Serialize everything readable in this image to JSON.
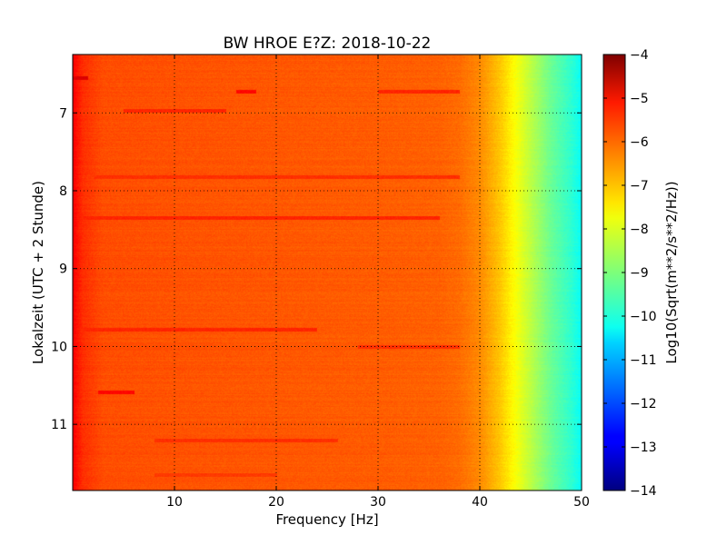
{
  "chart_data": {
    "type": "heatmap",
    "title": "BW HROE E?Z: 2018-10-22",
    "xlabel": "Frequency [Hz]",
    "ylabel": "Lokalzeit (UTC + 2 Stunde)",
    "xlim": [
      0,
      50
    ],
    "ylim": [
      6.25,
      11.85
    ],
    "y_inverted": true,
    "x_ticks": [
      10,
      20,
      30,
      40,
      50
    ],
    "x_tick_labels": [
      "10",
      "20",
      "30",
      "40",
      "50"
    ],
    "y_ticks": [
      7,
      8,
      9,
      10,
      11
    ],
    "y_tick_labels": [
      "7",
      "8",
      "9",
      "10",
      "11"
    ],
    "grid": true,
    "colormap": "jet",
    "colorbar": {
      "label": "Log10(Sqrt(m**2/s**2/Hz))",
      "range": [
        -14,
        -4
      ],
      "ticks": [
        -4,
        -5,
        -6,
        -7,
        -8,
        -9,
        -10,
        -11,
        -12,
        -13,
        -14
      ],
      "tick_labels": [
        "−4",
        "−5",
        "−6",
        "−7",
        "−8",
        "−9",
        "−10",
        "−11",
        "−12",
        "−13",
        "−14"
      ]
    },
    "spectrum_profile": {
      "frequency_hz": [
        0,
        1,
        3,
        10,
        20,
        30,
        36,
        38,
        40,
        41,
        42,
        43,
        44,
        45,
        46,
        47,
        48,
        49,
        50
      ],
      "log10_amplitude": [
        -5.2,
        -5.7,
        -6.0,
        -6.05,
        -6.1,
        -6.15,
        -6.2,
        -6.3,
        -6.6,
        -6.9,
        -7.2,
        -7.6,
        -8.0,
        -8.4,
        -8.8,
        -9.2,
        -9.5,
        -9.8,
        -10.2
      ]
    },
    "features": [
      {
        "time": 6.55,
        "freq_from": 0,
        "freq_to": 1.5,
        "log10_amplitude": -4.9
      },
      {
        "time": 6.72,
        "freq_from": 16,
        "freq_to": 18,
        "log10_amplitude": -5.3
      },
      {
        "time": 6.72,
        "freq_from": 30,
        "freq_to": 38,
        "log10_amplitude": -5.6
      },
      {
        "time": 6.97,
        "freq_from": 5,
        "freq_to": 15,
        "log10_amplitude": -5.6
      },
      {
        "time": 7.82,
        "freq_from": 2,
        "freq_to": 38,
        "log10_amplitude": -5.7
      },
      {
        "time": 8.35,
        "freq_from": 1,
        "freq_to": 36,
        "log10_amplitude": -5.6
      },
      {
        "time": 9.78,
        "freq_from": 1,
        "freq_to": 24,
        "log10_amplitude": -5.6
      },
      {
        "time": 10.0,
        "freq_from": 28,
        "freq_to": 38,
        "log10_amplitude": -5.7
      },
      {
        "time": 10.58,
        "freq_from": 2.5,
        "freq_to": 6,
        "log10_amplitude": -5.3
      },
      {
        "time": 11.2,
        "freq_from": 8,
        "freq_to": 26,
        "log10_amplitude": -5.7
      },
      {
        "time": 11.65,
        "freq_from": 8,
        "freq_to": 20,
        "log10_amplitude": -5.8
      }
    ]
  }
}
